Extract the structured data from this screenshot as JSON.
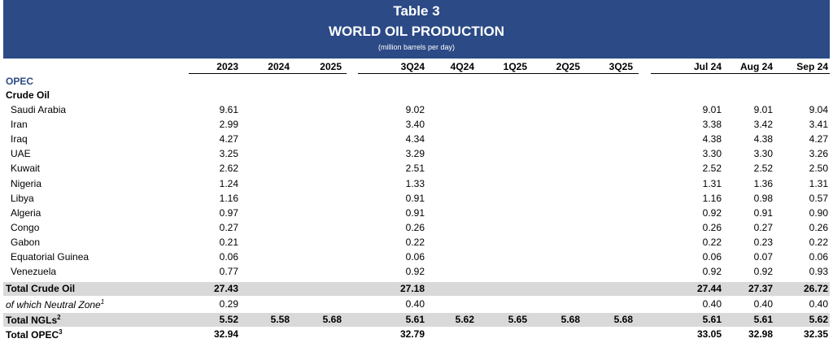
{
  "header": {
    "title": "Table 3",
    "subtitle": "WORLD OIL PRODUCTION",
    "unit": "(million barrels per day)"
  },
  "table": {
    "columns": [
      "2023",
      "2024",
      "2025",
      "3Q24",
      "4Q24",
      "1Q25",
      "2Q25",
      "3Q25",
      "Jul 24",
      "Aug 24",
      "Sep 24"
    ],
    "section": "OPEC",
    "subsection": "Crude Oil",
    "rows": [
      {
        "label": "Saudi Arabia",
        "values": [
          "9.61",
          null,
          null,
          "9.02",
          null,
          null,
          null,
          null,
          "9.01",
          "9.01",
          "9.04"
        ]
      },
      {
        "label": "Iran",
        "values": [
          "2.99",
          null,
          null,
          "3.40",
          null,
          null,
          null,
          null,
          "3.38",
          "3.42",
          "3.41"
        ]
      },
      {
        "label": "Iraq",
        "values": [
          "4.27",
          null,
          null,
          "4.34",
          null,
          null,
          null,
          null,
          "4.38",
          "4.38",
          "4.27"
        ]
      },
      {
        "label": "UAE",
        "values": [
          "3.25",
          null,
          null,
          "3.29",
          null,
          null,
          null,
          null,
          "3.30",
          "3.30",
          "3.26"
        ]
      },
      {
        "label": "Kuwait",
        "values": [
          "2.62",
          null,
          null,
          "2.51",
          null,
          null,
          null,
          null,
          "2.52",
          "2.52",
          "2.50"
        ]
      },
      {
        "label": "Nigeria",
        "values": [
          "1.24",
          null,
          null,
          "1.33",
          null,
          null,
          null,
          null,
          "1.31",
          "1.36",
          "1.31"
        ]
      },
      {
        "label": "Libya",
        "values": [
          "1.16",
          null,
          null,
          "0.91",
          null,
          null,
          null,
          null,
          "1.16",
          "0.98",
          "0.57"
        ]
      },
      {
        "label": "Algeria",
        "values": [
          "0.97",
          null,
          null,
          "0.91",
          null,
          null,
          null,
          null,
          "0.92",
          "0.91",
          "0.90"
        ]
      },
      {
        "label": "Congo",
        "values": [
          "0.27",
          null,
          null,
          "0.26",
          null,
          null,
          null,
          null,
          "0.26",
          "0.27",
          "0.26"
        ]
      },
      {
        "label": "Gabon",
        "values": [
          "0.21",
          null,
          null,
          "0.22",
          null,
          null,
          null,
          null,
          "0.22",
          "0.23",
          "0.22"
        ]
      },
      {
        "label": "Equatorial Guinea",
        "values": [
          "0.06",
          null,
          null,
          "0.06",
          null,
          null,
          null,
          null,
          "0.06",
          "0.07",
          "0.06"
        ]
      },
      {
        "label": "Venezuela",
        "values": [
          "0.77",
          null,
          null,
          "0.92",
          null,
          null,
          null,
          null,
          "0.92",
          "0.92",
          "0.93"
        ]
      }
    ],
    "totals": [
      {
        "label": "Total Crude Oil",
        "values": [
          "27.43",
          null,
          null,
          "27.18",
          null,
          null,
          null,
          null,
          "27.44",
          "27.37",
          "26.72"
        ]
      },
      {
        "label": "of which Neutral Zone",
        "note": "1",
        "values": [
          "0.29",
          null,
          null,
          "0.40",
          null,
          null,
          null,
          null,
          "0.40",
          "0.40",
          "0.40"
        ]
      },
      {
        "label": "Total NGLs",
        "note": "2",
        "values": [
          "5.52",
          "5.58",
          "5.68",
          "5.61",
          "5.62",
          "5.65",
          "5.68",
          "5.68",
          "5.61",
          "5.61",
          "5.62"
        ]
      },
      {
        "label": "Total OPEC",
        "note": "3",
        "values": [
          "32.94",
          null,
          null,
          "32.79",
          null,
          null,
          null,
          null,
          "33.05",
          "32.98",
          "32.35"
        ]
      }
    ]
  }
}
